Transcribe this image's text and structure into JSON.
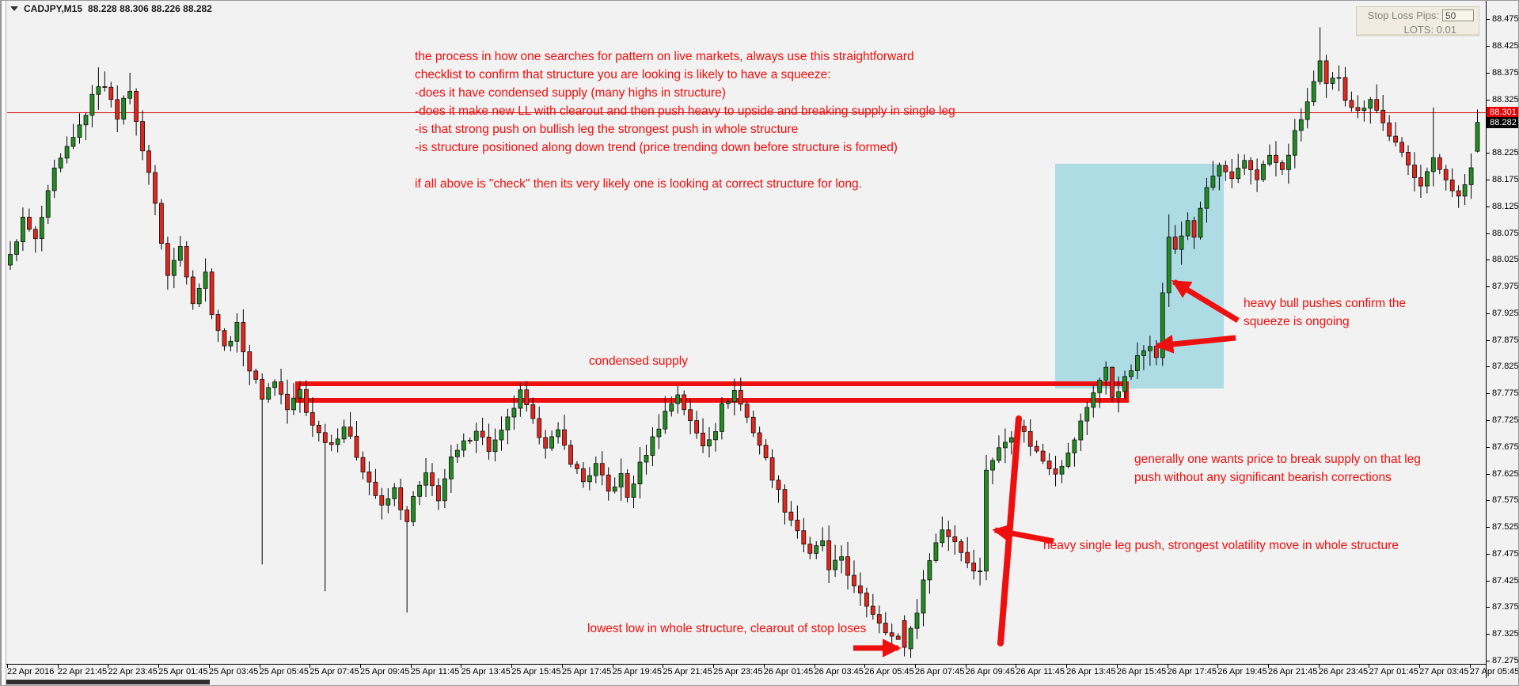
{
  "window": {
    "title_symbol": "CADJPY,M15",
    "title_ohlc": "88.228 88.306 88.226 88.282"
  },
  "panel": {
    "stop_loss_label": "Stop Loss Pips:",
    "stop_loss_value": "50",
    "lots_label": "LOTS:",
    "lots_value": "0.01"
  },
  "price_axis": {
    "labels": [
      "88.475",
      "88.425",
      "88.375",
      "88.325",
      "88.275",
      "88.225",
      "88.175",
      "88.125",
      "88.075",
      "88.025",
      "87.975",
      "87.925",
      "87.875",
      "87.825",
      "87.775",
      "87.725",
      "87.675",
      "87.625",
      "87.575",
      "87.525",
      "87.475",
      "87.425",
      "87.375",
      "87.325",
      "87.275"
    ],
    "ask_badge": "88.301",
    "bid_badge": "88.282"
  },
  "time_axis": {
    "labels": [
      "22 Apr 2016",
      "22 Apr 21:45",
      "22 Apr 23:45",
      "25 Apr 01:45",
      "25 Apr 03:45",
      "25 Apr 05:45",
      "25 Apr 07:45",
      "25 Apr 09:45",
      "25 Apr 11:45",
      "25 Apr 13:45",
      "25 Apr 15:45",
      "25 Apr 17:45",
      "25 Apr 19:45",
      "25 Apr 21:45",
      "25 Apr 23:45",
      "26 Apr 01:45",
      "26 Apr 03:45",
      "26 Apr 05:45",
      "26 Apr 07:45",
      "26 Apr 09:45",
      "26 Apr 11:45",
      "26 Apr 13:45",
      "26 Apr 15:45",
      "26 Apr 17:45",
      "26 Apr 19:45",
      "26 Apr 21:45",
      "26 Apr 23:45",
      "27 Apr 01:45",
      "27 Apr 03:45",
      "27 Apr 05:45"
    ]
  },
  "chart_data": {
    "type": "candlestick",
    "symbol": "CADJPY",
    "timeframe": "M15",
    "title": "CADJPY,M15 88.228 88.306 88.226 88.282",
    "ylim": [
      87.275,
      88.475
    ],
    "price_step": 0.05,
    "grid": false,
    "current_price_line": 88.301,
    "current_bid": 88.282,
    "last_candle_ohlc": {
      "open": 88.228,
      "high": 88.306,
      "low": 88.226,
      "close": 88.282
    },
    "key_levels": {
      "condensed_supply_zone": [
        87.76,
        87.8
      ],
      "lowest_low": 87.283,
      "session_high": 88.46
    },
    "squeeze_zone_time_range": [
      "26 Apr 13:45",
      "26 Apr 19:45"
    ],
    "squeeze_zone_price_range": [
      87.785,
      88.205
    ],
    "candle_count": 234,
    "close_waypoints": [
      [
        0,
        88.03
      ],
      [
        2,
        88.1
      ],
      [
        4,
        88.06
      ],
      [
        7,
        88.19
      ],
      [
        10,
        88.25
      ],
      [
        12,
        88.3
      ],
      [
        14,
        88.355
      ],
      [
        16,
        88.33
      ],
      [
        17,
        88.295
      ],
      [
        19,
        88.345
      ],
      [
        20,
        88.28
      ],
      [
        22,
        88.19
      ],
      [
        24,
        88.06
      ],
      [
        25,
        87.995
      ],
      [
        27,
        88.05
      ],
      [
        29,
        87.95
      ],
      [
        31,
        88.0
      ],
      [
        32,
        87.93
      ],
      [
        34,
        87.86
      ],
      [
        36,
        87.9
      ],
      [
        38,
        87.82
      ],
      [
        40,
        87.77
      ],
      [
        42,
        87.8
      ],
      [
        44,
        87.745
      ],
      [
        46,
        87.78
      ],
      [
        47,
        87.74
      ],
      [
        49,
        87.7
      ],
      [
        51,
        87.68
      ],
      [
        53,
        87.715
      ],
      [
        55,
        87.66
      ],
      [
        57,
        87.61
      ],
      [
        59,
        87.56
      ],
      [
        61,
        87.595
      ],
      [
        63,
        87.53
      ],
      [
        64,
        87.58
      ],
      [
        66,
        87.62
      ],
      [
        68,
        87.58
      ],
      [
        70,
        87.65
      ],
      [
        72,
        87.68
      ],
      [
        74,
        87.71
      ],
      [
        76,
        87.67
      ],
      [
        78,
        87.7
      ],
      [
        80,
        87.75
      ],
      [
        81,
        87.775
      ],
      [
        83,
        87.72
      ],
      [
        85,
        87.68
      ],
      [
        87,
        87.7
      ],
      [
        89,
        87.65
      ],
      [
        91,
        87.61
      ],
      [
        93,
        87.64
      ],
      [
        95,
        87.59
      ],
      [
        97,
        87.62
      ],
      [
        98,
        87.58
      ],
      [
        100,
        87.64
      ],
      [
        102,
        87.69
      ],
      [
        104,
        87.74
      ],
      [
        106,
        87.775
      ],
      [
        108,
        87.72
      ],
      [
        110,
        87.68
      ],
      [
        112,
        87.71
      ],
      [
        113,
        87.75
      ],
      [
        115,
        87.78
      ],
      [
        117,
        87.73
      ],
      [
        119,
        87.68
      ],
      [
        121,
        87.62
      ],
      [
        123,
        87.56
      ],
      [
        125,
        87.52
      ],
      [
        127,
        87.47
      ],
      [
        129,
        87.5
      ],
      [
        130,
        87.44
      ],
      [
        132,
        87.47
      ],
      [
        134,
        87.41
      ],
      [
        136,
        87.38
      ],
      [
        138,
        87.35
      ],
      [
        140,
        87.32
      ],
      [
        142,
        87.3
      ],
      [
        144,
        87.37
      ],
      [
        146,
        87.47
      ],
      [
        148,
        87.52
      ],
      [
        150,
        87.5
      ],
      [
        152,
        87.46
      ],
      [
        154,
        87.44
      ],
      [
        155,
        87.635
      ],
      [
        157,
        87.67
      ],
      [
        159,
        87.7
      ],
      [
        160,
        87.72
      ],
      [
        162,
        87.68
      ],
      [
        164,
        87.65
      ],
      [
        166,
        87.63
      ],
      [
        168,
        87.66
      ],
      [
        170,
        87.72
      ],
      [
        172,
        87.78
      ],
      [
        174,
        87.82
      ],
      [
        175,
        87.77
      ],
      [
        177,
        87.8
      ],
      [
        179,
        87.84
      ],
      [
        181,
        87.87
      ],
      [
        182,
        87.85
      ],
      [
        184,
        88.07
      ],
      [
        185,
        88.04
      ],
      [
        187,
        88.1
      ],
      [
        188,
        88.07
      ],
      [
        190,
        88.16
      ],
      [
        192,
        88.2
      ],
      [
        194,
        88.17
      ],
      [
        196,
        88.21
      ],
      [
        198,
        88.18
      ],
      [
        200,
        88.22
      ],
      [
        202,
        88.19
      ],
      [
        204,
        88.26
      ],
      [
        206,
        88.32
      ],
      [
        208,
        88.39
      ],
      [
        209,
        88.35
      ],
      [
        211,
        88.37
      ],
      [
        212,
        88.33
      ],
      [
        214,
        88.3
      ],
      [
        216,
        88.33
      ],
      [
        218,
        88.28
      ],
      [
        220,
        88.24
      ],
      [
        222,
        88.2
      ],
      [
        224,
        88.17
      ],
      [
        226,
        88.21
      ],
      [
        228,
        88.18
      ],
      [
        230,
        88.14
      ],
      [
        231,
        88.16
      ],
      [
        232,
        88.2
      ],
      [
        233,
        88.282
      ]
    ],
    "candle_overrides": {
      "14": {
        "high": 88.385
      },
      "19": {
        "high": 88.375
      },
      "40": {
        "low": 87.455
      },
      "50": {
        "low": 87.405
      },
      "63": {
        "low": 87.365
      },
      "141": {
        "low": 87.32
      },
      "142": {
        "open": 87.35,
        "close": 87.3,
        "low": 87.283,
        "high": 87.36
      },
      "155": {
        "high": 87.66
      },
      "174": {
        "high": 87.835
      },
      "175": {
        "high": 87.825
      },
      "184": {
        "high": 88.11
      },
      "208": {
        "high": 88.46
      },
      "226": {
        "high": 88.31
      },
      "233": {
        "open": 88.228,
        "high": 88.306,
        "low": 88.226,
        "close": 88.282
      }
    },
    "colors": {
      "bull": "#228B22",
      "bear": "#E3251C",
      "wick": "#000000",
      "background": "#f3f2f2",
      "annotation_red": "#ee0f0f",
      "squeeze_zone_blue": "#AEDCE5",
      "price_line_red": "#d40000"
    }
  },
  "annotations": {
    "checklist_lines": [
      "the process in how one searches for pattern on live markets, always use this straightforward",
      "checklist to confirm that structure you are looking is likely to have a squeeze:",
      "-does it have condensed supply (many highs in structure)",
      "-does it make new LL with clearout and then push heavy to upside and breaking supply in single leg",
      "-is that strong push on bullish leg the strongest push in whole structure",
      "-is structure positioned along down trend (price trending down before structure is formed)",
      "",
      "if all above is \"check\" then its very likely one is looking at correct structure for long."
    ],
    "condensed_supply": "condensed supply",
    "heavy_bull_lines": [
      "heavy bull pushes confirm the",
      "squeeze is ongoing"
    ],
    "break_supply_lines": [
      "generally one wants price to break supply on that leg",
      "push without any significant bearish corrections"
    ],
    "single_leg": "heavy single leg push, strongest volatility move in whole structure",
    "lowest_low": "lowest low in whole structure, clearout of stop loses"
  }
}
